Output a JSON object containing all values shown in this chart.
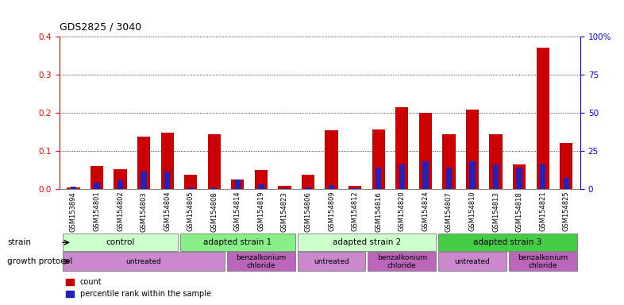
{
  "title": "GDS2825 / 3040",
  "samples": [
    "GSM153894",
    "GSM154801",
    "GSM154802",
    "GSM154803",
    "GSM154804",
    "GSM154805",
    "GSM154808",
    "GSM154814",
    "GSM154819",
    "GSM154823",
    "GSM154806",
    "GSM154809",
    "GSM154812",
    "GSM154816",
    "GSM154820",
    "GSM154824",
    "GSM154807",
    "GSM154810",
    "GSM154813",
    "GSM154818",
    "GSM154821",
    "GSM154825"
  ],
  "count": [
    0.005,
    0.06,
    0.053,
    0.138,
    0.148,
    0.037,
    0.143,
    0.025,
    0.05,
    0.008,
    0.038,
    0.155,
    0.008,
    0.157,
    0.215,
    0.2,
    0.143,
    0.208,
    0.143,
    0.065,
    0.37,
    0.12
  ],
  "percentile_pct": [
    1.5,
    4.0,
    6.0,
    11.5,
    11.5,
    1.2,
    1.2,
    6.5,
    3.0,
    0.8,
    1.2,
    2.5,
    0.8,
    14.0,
    16.0,
    18.5,
    14.0,
    18.5,
    16.0,
    14.0,
    16.0,
    7.5
  ],
  "ylim_left": [
    0.0,
    0.4
  ],
  "ylim_right": [
    0,
    100
  ],
  "yticks_left": [
    0.0,
    0.1,
    0.2,
    0.3,
    0.4
  ],
  "yticks_right": [
    0,
    25,
    50,
    75,
    100
  ],
  "ytick_labels_right": [
    "0",
    "25",
    "50",
    "75",
    "100%"
  ],
  "bar_color_red": "#cc0000",
  "bar_color_blue": "#2222bb",
  "xtick_bg": "#dddddd",
  "strain_groups": [
    {
      "label": "control",
      "start": 0,
      "end": 4,
      "color": "#ccffcc"
    },
    {
      "label": "adapted strain 1",
      "start": 5,
      "end": 9,
      "color": "#88ee88"
    },
    {
      "label": "adapted strain 2",
      "start": 10,
      "end": 15,
      "color": "#ccffcc"
    },
    {
      "label": "adapted strain 3",
      "start": 16,
      "end": 21,
      "color": "#44cc44"
    }
  ],
  "protocol_groups": [
    {
      "label": "untreated",
      "start": 0,
      "end": 6,
      "color": "#cc88cc"
    },
    {
      "label": "benzalkonium\nchloride",
      "start": 7,
      "end": 9,
      "color": "#bb66bb"
    },
    {
      "label": "untreated",
      "start": 10,
      "end": 12,
      "color": "#cc88cc"
    },
    {
      "label": "benzalkonium\nchloride",
      "start": 13,
      "end": 15,
      "color": "#bb66bb"
    },
    {
      "label": "untreated",
      "start": 16,
      "end": 18,
      "color": "#cc88cc"
    },
    {
      "label": "benzalkonium\nchloride",
      "start": 19,
      "end": 21,
      "color": "#bb66bb"
    }
  ]
}
